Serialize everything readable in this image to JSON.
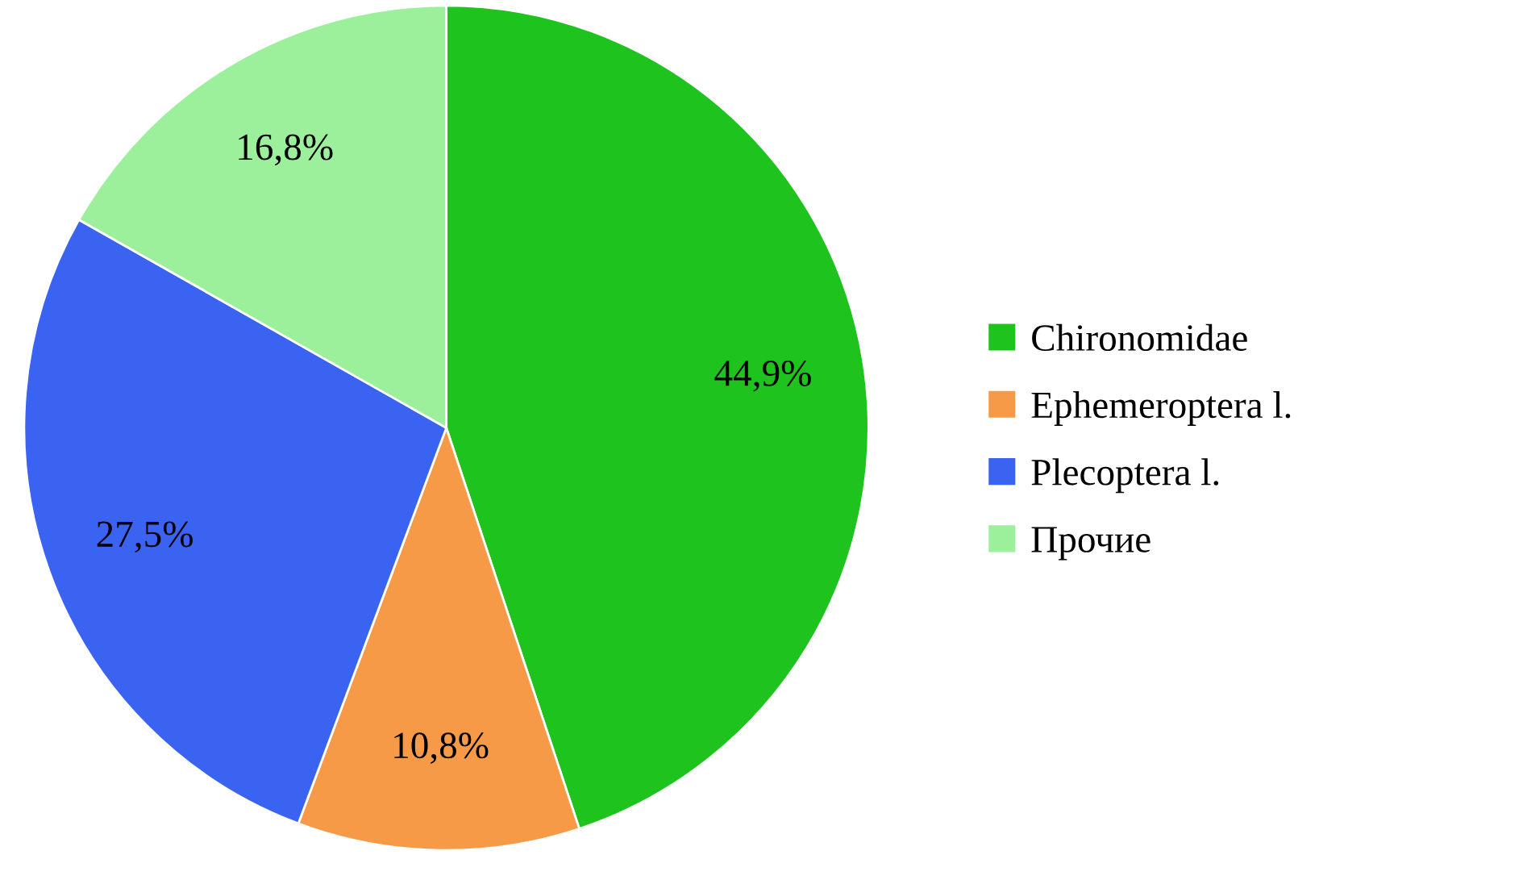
{
  "chart_data": {
    "type": "pie",
    "categories": [
      "Chironomidae",
      "Ephemeroptera l.",
      "Plecoptera l.",
      "Прочие"
    ],
    "values": [
      44.9,
      10.8,
      27.5,
      16.8
    ],
    "colors": [
      "#1ec31e",
      "#f79a48",
      "#3a63f2",
      "#9cf09c"
    ],
    "value_labels": [
      "44,9%",
      "10,8%",
      "27,5%",
      "16,8%"
    ],
    "legend": "right"
  }
}
